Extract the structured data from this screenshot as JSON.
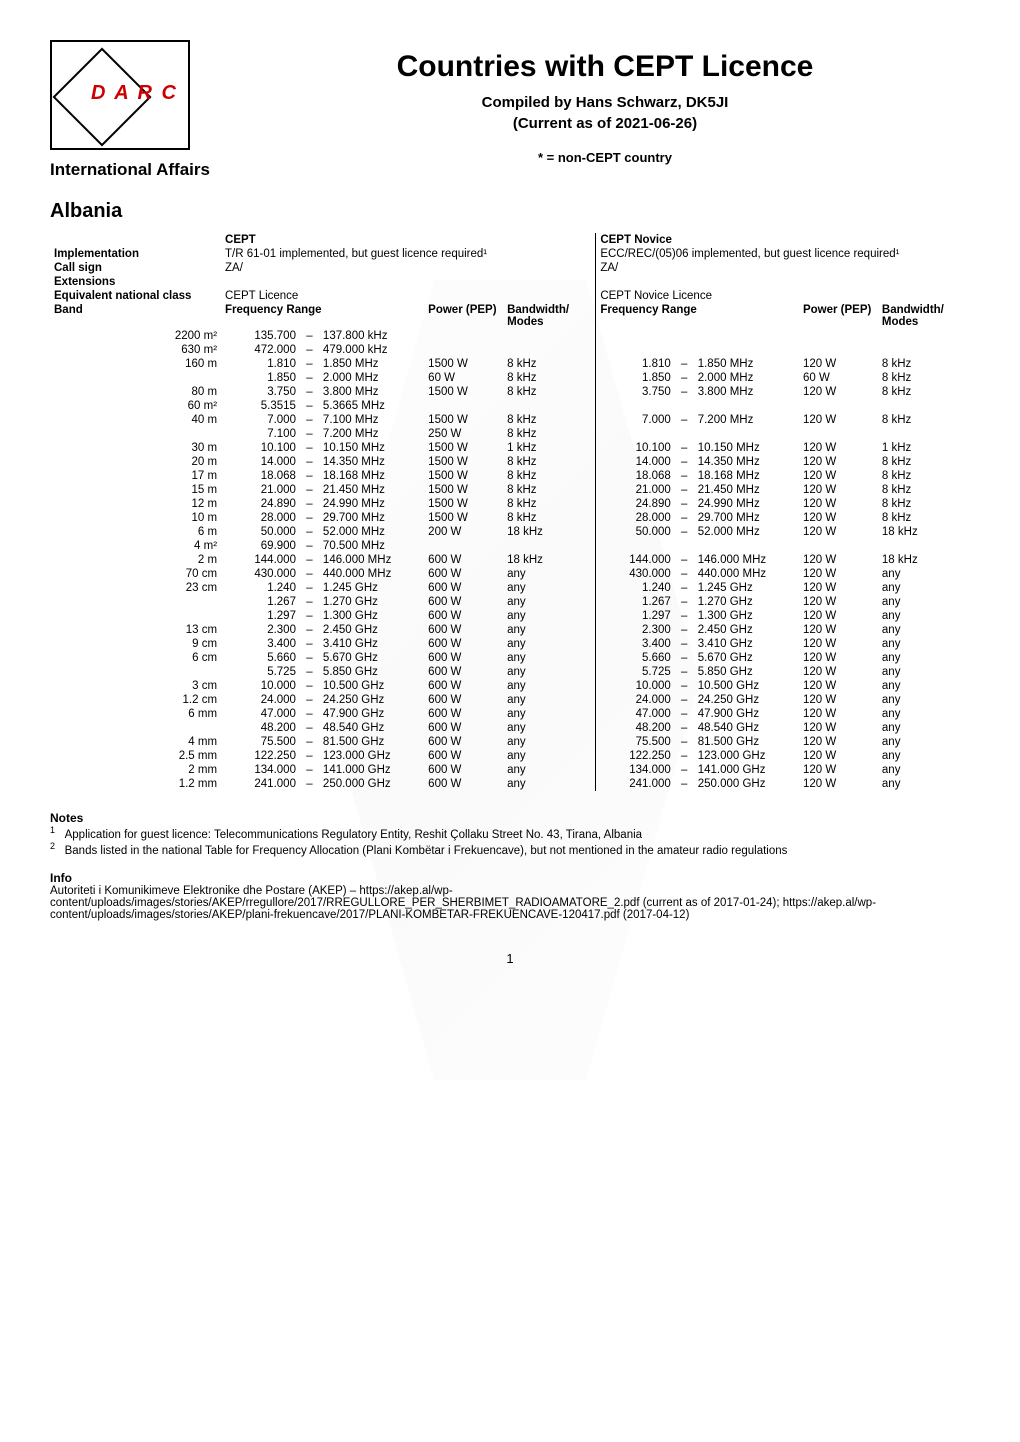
{
  "header": {
    "title": "Countries with CEPT Licence",
    "compiled_by": "Compiled by Hans Schwarz, DK5JI",
    "current_as_of": "(Current as of 2021-06-26)",
    "intl_affairs": "International Affairs",
    "non_cept_note": "* = non-CEPT country",
    "logo_text": "D A R C"
  },
  "country": "Albania",
  "columns": {
    "cept": "CEPT",
    "cept_novice": "CEPT Novice",
    "implementation": "Implementation",
    "call_sign": "Call sign",
    "extensions": "Extensions",
    "equivalent": "Equivalent national class",
    "band": "Band",
    "freq_range": "Frequency Range",
    "power": "Power (PEP)",
    "bandwidth": "Bandwidth/ Modes"
  },
  "meta": {
    "cept": {
      "implementation": "T/R 61-01 implemented, but guest licence required¹",
      "call_sign": "ZA/",
      "extensions": "",
      "equivalent": "CEPT Licence"
    },
    "novice": {
      "implementation": "ECC/REC/(05)06 implemented, but guest licence required¹",
      "call_sign": "ZA/",
      "extensions": "",
      "equivalent": "CEPT Novice Licence"
    }
  },
  "rows": [
    {
      "band": "2200 m²",
      "c_lo": "135.700",
      "c_hi": "137.800",
      "c_u": "kHz",
      "c_p": "",
      "c_b": "",
      "n_lo": "",
      "n_hi": "",
      "n_u": "",
      "n_p": "",
      "n_b": ""
    },
    {
      "band": "630 m²",
      "c_lo": "472.000",
      "c_hi": "479.000",
      "c_u": "kHz",
      "c_p": "",
      "c_b": "",
      "n_lo": "",
      "n_hi": "",
      "n_u": "",
      "n_p": "",
      "n_b": ""
    },
    {
      "band": "160 m",
      "c_lo": "1.810",
      "c_hi": "1.850",
      "c_u": "MHz",
      "c_p": "1500 W",
      "c_b": "8 kHz",
      "n_lo": "1.810",
      "n_hi": "1.850",
      "n_u": "MHz",
      "n_p": "120 W",
      "n_b": "8 kHz"
    },
    {
      "band": "",
      "c_lo": "1.850",
      "c_hi": "2.000",
      "c_u": "MHz",
      "c_p": "60 W",
      "c_b": "8 kHz",
      "n_lo": "1.850",
      "n_hi": "2.000",
      "n_u": "MHz",
      "n_p": "60 W",
      "n_b": "8 kHz"
    },
    {
      "band": "80 m",
      "c_lo": "3.750",
      "c_hi": "3.800",
      "c_u": "MHz",
      "c_p": "1500 W",
      "c_b": "8 kHz",
      "n_lo": "3.750",
      "n_hi": "3.800",
      "n_u": "MHz",
      "n_p": "120 W",
      "n_b": "8 kHz"
    },
    {
      "band": "60 m²",
      "c_lo": "5.3515",
      "c_hi": "5.3665",
      "c_u": "MHz",
      "c_p": "",
      "c_b": "",
      "n_lo": "",
      "n_hi": "",
      "n_u": "",
      "n_p": "",
      "n_b": ""
    },
    {
      "band": "40 m",
      "c_lo": "7.000",
      "c_hi": "7.100",
      "c_u": "MHz",
      "c_p": "1500 W",
      "c_b": "8 kHz",
      "n_lo": "7.000",
      "n_hi": "7.200",
      "n_u": "MHz",
      "n_p": "120 W",
      "n_b": "8 kHz"
    },
    {
      "band": "",
      "c_lo": "7.100",
      "c_hi": "7.200",
      "c_u": "MHz",
      "c_p": "250 W",
      "c_b": "8 kHz",
      "n_lo": "",
      "n_hi": "",
      "n_u": "",
      "n_p": "",
      "n_b": ""
    },
    {
      "band": "30 m",
      "c_lo": "10.100",
      "c_hi": "10.150",
      "c_u": "MHz",
      "c_p": "1500 W",
      "c_b": "1 kHz",
      "n_lo": "10.100",
      "n_hi": "10.150",
      "n_u": "MHz",
      "n_p": "120 W",
      "n_b": "1 kHz"
    },
    {
      "band": "20 m",
      "c_lo": "14.000",
      "c_hi": "14.350",
      "c_u": "MHz",
      "c_p": "1500 W",
      "c_b": "8 kHz",
      "n_lo": "14.000",
      "n_hi": "14.350",
      "n_u": "MHz",
      "n_p": "120 W",
      "n_b": "8 kHz"
    },
    {
      "band": "17 m",
      "c_lo": "18.068",
      "c_hi": "18.168",
      "c_u": "MHz",
      "c_p": "1500 W",
      "c_b": "8 kHz",
      "n_lo": "18.068",
      "n_hi": "18.168",
      "n_u": "MHz",
      "n_p": "120 W",
      "n_b": "8 kHz"
    },
    {
      "band": "15 m",
      "c_lo": "21.000",
      "c_hi": "21.450",
      "c_u": "MHz",
      "c_p": "1500 W",
      "c_b": "8 kHz",
      "n_lo": "21.000",
      "n_hi": "21.450",
      "n_u": "MHz",
      "n_p": "120 W",
      "n_b": "8 kHz"
    },
    {
      "band": "12 m",
      "c_lo": "24.890",
      "c_hi": "24.990",
      "c_u": "MHz",
      "c_p": "1500 W",
      "c_b": "8 kHz",
      "n_lo": "24.890",
      "n_hi": "24.990",
      "n_u": "MHz",
      "n_p": "120 W",
      "n_b": "8 kHz"
    },
    {
      "band": "10 m",
      "c_lo": "28.000",
      "c_hi": "29.700",
      "c_u": "MHz",
      "c_p": "1500 W",
      "c_b": "8 kHz",
      "n_lo": "28.000",
      "n_hi": "29.700",
      "n_u": "MHz",
      "n_p": "120 W",
      "n_b": "8 kHz"
    },
    {
      "band": "6 m",
      "c_lo": "50.000",
      "c_hi": "52.000",
      "c_u": "MHz",
      "c_p": "200 W",
      "c_b": "18 kHz",
      "n_lo": "50.000",
      "n_hi": "52.000",
      "n_u": "MHz",
      "n_p": "120 W",
      "n_b": "18 kHz"
    },
    {
      "band": "4 m²",
      "c_lo": "69.900",
      "c_hi": "70.500",
      "c_u": "MHz",
      "c_p": "",
      "c_b": "",
      "n_lo": "",
      "n_hi": "",
      "n_u": "",
      "n_p": "",
      "n_b": ""
    },
    {
      "band": "2 m",
      "c_lo": "144.000",
      "c_hi": "146.000",
      "c_u": "MHz",
      "c_p": "600 W",
      "c_b": "18 kHz",
      "n_lo": "144.000",
      "n_hi": "146.000",
      "n_u": "MHz",
      "n_p": "120 W",
      "n_b": "18 kHz"
    },
    {
      "band": "70 cm",
      "c_lo": "430.000",
      "c_hi": "440.000",
      "c_u": "MHz",
      "c_p": "600 W",
      "c_b": "any",
      "n_lo": "430.000",
      "n_hi": "440.000",
      "n_u": "MHz",
      "n_p": "120 W",
      "n_b": "any"
    },
    {
      "band": "23 cm",
      "c_lo": "1.240",
      "c_hi": "1.245",
      "c_u": "GHz",
      "c_p": "600 W",
      "c_b": "any",
      "n_lo": "1.240",
      "n_hi": "1.245",
      "n_u": "GHz",
      "n_p": "120 W",
      "n_b": "any"
    },
    {
      "band": "",
      "c_lo": "1.267",
      "c_hi": "1.270",
      "c_u": "GHz",
      "c_p": "600 W",
      "c_b": "any",
      "n_lo": "1.267",
      "n_hi": "1.270",
      "n_u": "GHz",
      "n_p": "120 W",
      "n_b": "any"
    },
    {
      "band": "",
      "c_lo": "1.297",
      "c_hi": "1.300",
      "c_u": "GHz",
      "c_p": "600 W",
      "c_b": "any",
      "n_lo": "1.297",
      "n_hi": "1.300",
      "n_u": "GHz",
      "n_p": "120 W",
      "n_b": "any"
    },
    {
      "band": "13 cm",
      "c_lo": "2.300",
      "c_hi": "2.450",
      "c_u": "GHz",
      "c_p": "600 W",
      "c_b": "any",
      "n_lo": "2.300",
      "n_hi": "2.450",
      "n_u": "GHz",
      "n_p": "120 W",
      "n_b": "any"
    },
    {
      "band": "9 cm",
      "c_lo": "3.400",
      "c_hi": "3.410",
      "c_u": "GHz",
      "c_p": "600 W",
      "c_b": "any",
      "n_lo": "3.400",
      "n_hi": "3.410",
      "n_u": "GHz",
      "n_p": "120 W",
      "n_b": "any"
    },
    {
      "band": "6 cm",
      "c_lo": "5.660",
      "c_hi": "5.670",
      "c_u": "GHz",
      "c_p": "600 W",
      "c_b": "any",
      "n_lo": "5.660",
      "n_hi": "5.670",
      "n_u": "GHz",
      "n_p": "120 W",
      "n_b": "any"
    },
    {
      "band": "",
      "c_lo": "5.725",
      "c_hi": "5.850",
      "c_u": "GHz",
      "c_p": "600 W",
      "c_b": "any",
      "n_lo": "5.725",
      "n_hi": "5.850",
      "n_u": "GHz",
      "n_p": "120 W",
      "n_b": "any"
    },
    {
      "band": "3 cm",
      "c_lo": "10.000",
      "c_hi": "10.500",
      "c_u": "GHz",
      "c_p": "600 W",
      "c_b": "any",
      "n_lo": "10.000",
      "n_hi": "10.500",
      "n_u": "GHz",
      "n_p": "120 W",
      "n_b": "any"
    },
    {
      "band": "1.2 cm",
      "c_lo": "24.000",
      "c_hi": "24.250",
      "c_u": "GHz",
      "c_p": "600 W",
      "c_b": "any",
      "n_lo": "24.000",
      "n_hi": "24.250",
      "n_u": "GHz",
      "n_p": "120 W",
      "n_b": "any"
    },
    {
      "band": "6 mm",
      "c_lo": "47.000",
      "c_hi": "47.900",
      "c_u": "GHz",
      "c_p": "600 W",
      "c_b": "any",
      "n_lo": "47.000",
      "n_hi": "47.900",
      "n_u": "GHz",
      "n_p": "120 W",
      "n_b": "any"
    },
    {
      "band": "",
      "c_lo": "48.200",
      "c_hi": "48.540",
      "c_u": "GHz",
      "c_p": "600 W",
      "c_b": "any",
      "n_lo": "48.200",
      "n_hi": "48.540",
      "n_u": "GHz",
      "n_p": "120 W",
      "n_b": "any"
    },
    {
      "band": "4 mm",
      "c_lo": "75.500",
      "c_hi": "81.500",
      "c_u": "GHz",
      "c_p": "600 W",
      "c_b": "any",
      "n_lo": "75.500",
      "n_hi": "81.500",
      "n_u": "GHz",
      "n_p": "120 W",
      "n_b": "any"
    },
    {
      "band": "2.5 mm",
      "c_lo": "122.250",
      "c_hi": "123.000",
      "c_u": "GHz",
      "c_p": "600 W",
      "c_b": "any",
      "n_lo": "122.250",
      "n_hi": "123.000",
      "n_u": "GHz",
      "n_p": "120 W",
      "n_b": "any"
    },
    {
      "band": "2 mm",
      "c_lo": "134.000",
      "c_hi": "141.000",
      "c_u": "GHz",
      "c_p": "600 W",
      "c_b": "any",
      "n_lo": "134.000",
      "n_hi": "141.000",
      "n_u": "GHz",
      "n_p": "120 W",
      "n_b": "any"
    },
    {
      "band": "1.2 mm",
      "c_lo": "241.000",
      "c_hi": "250.000",
      "c_u": "GHz",
      "c_p": "600 W",
      "c_b": "any",
      "n_lo": "241.000",
      "n_hi": "250.000",
      "n_u": "GHz",
      "n_p": "120 W",
      "n_b": "any"
    }
  ],
  "notes": {
    "heading": "Notes",
    "n1": "Application for guest licence: Telecommunications Regulatory Entity, Reshit Çollaku Street No. 43, Tirana, Albania",
    "n2": "Bands listed in the national Table for Frequency Allocation (Plani Kombëtar i Frekuencave), but not mentioned in the amateur radio regulations"
  },
  "info": {
    "heading": "Info",
    "body": "Autoriteti i Komunikimeve Elektronike dhe Postare (AKEP) – https://akep.al/wp-content/uploads/images/stories/AKEP/rregullore/2017/RREGULLORE_PER_SHERBIMET_RADIOAMATORE_2.pdf (current as of 2017-01-24); https://akep.al/wp-content/uploads/images/stories/AKEP/plani-frekuencave/2017/PLANI-KOMBETAR-FREKUENCAVE-120417.pdf (2017-04-12)"
  },
  "page_number": "1",
  "style": {
    "body_font_size": 11.5,
    "title_font_size": 30,
    "text_color": "#000000",
    "bg_color": "#ffffff",
    "accent_color": "#cc0000",
    "border_color": "#000000"
  }
}
